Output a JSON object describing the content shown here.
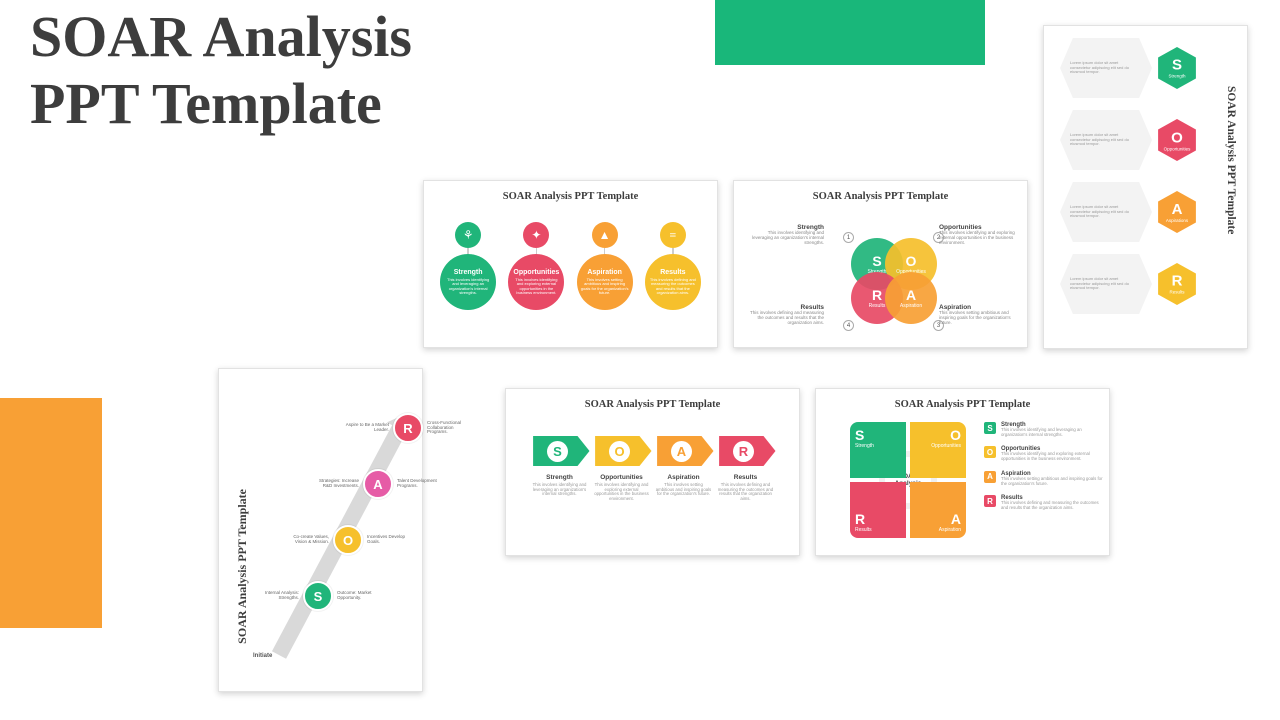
{
  "main_title_l1": "SOAR Analysis",
  "main_title_l2": " PPT Template",
  "block_colors": {
    "green": "#19b77a",
    "orange": "#f8a035"
  },
  "palette": {
    "green": "#20b57a",
    "red": "#e84a66",
    "orange": "#f8a035",
    "yellow": "#f6c02c",
    "pink": "#e65ca6",
    "grey": "#d9d9d9"
  },
  "slide_title": "SOAR Analysis PPT Template",
  "soar_items": [
    {
      "letter": "S",
      "word": "Strength",
      "color": "#20b57a",
      "desc": "This involves identifying and leveraging an organization's internal strengths."
    },
    {
      "letter": "O",
      "word": "Opportunities",
      "color": "#e84a66",
      "desc": "This involves identifying and exploring external opportunities in the business environment."
    },
    {
      "letter": "A",
      "word": "Aspiration",
      "color": "#f8a035",
      "desc": "This involves setting ambitious and inspiring goals for the organization's future."
    },
    {
      "letter": "R",
      "word": "Results",
      "color": "#f6c02c",
      "desc": "This involves defining and measuring the outcomes and results that the organization aims."
    }
  ],
  "s1_icons": [
    "⚘",
    "✦",
    "▲",
    "≡"
  ],
  "s2_side": [
    {
      "h": "Strength",
      "t": "This involves identifying and leveraging an organization's internal strengths."
    },
    {
      "h": "Opportunities",
      "t": "This involves identifying and exploring external opportunities in the business environment."
    },
    {
      "h": "Results",
      "t": "This involves defining and measuring the outcomes and results that the organization aims."
    },
    {
      "h": "Aspiration",
      "t": "This involves setting ambitious and inspiring goals for the organization's future."
    }
  ],
  "s3_items": [
    {
      "letter": "S",
      "word": "Strength",
      "color": "#20b57a"
    },
    {
      "letter": "O",
      "word": "Opportunities",
      "color": "#e84a66"
    },
    {
      "letter": "A",
      "word": "Aspirations",
      "color": "#f8a035"
    },
    {
      "letter": "R",
      "word": "Results",
      "color": "#f6c02c"
    }
  ],
  "s3_desc": "Lorem ipsum dolor sit amet consectetur adipiscing elit sed do eiusmod tempor.",
  "s4_nodes": [
    {
      "letter": "R",
      "color": "#e84a66",
      "left": "Aspire to Be a Market Leader.",
      "right": "Cross-Functional Collaboration Programs."
    },
    {
      "letter": "A",
      "color": "#e65ca6",
      "left": "Strategies: Increase R&D Investments.",
      "right": "Talent Development Programs."
    },
    {
      "letter": "O",
      "color": "#f6c02c",
      "left": "Co-create Values, Vision & Mission.",
      "right": "Incentives Develop Goals."
    },
    {
      "letter": "S",
      "color": "#20b57a",
      "left": "Internal Analysis: Strengths.",
      "right": "Outcome: Market Opportunity."
    }
  ],
  "s4_initiate": "Initiate",
  "s5_items": [
    {
      "letter": "S",
      "word": "Strength",
      "color": "#20b57a"
    },
    {
      "letter": "O",
      "word": "Opportunities",
      "color": "#f6c02c"
    },
    {
      "letter": "A",
      "word": "Aspiration",
      "color": "#f8a035"
    },
    {
      "letter": "R",
      "word": "Results",
      "color": "#e84a66"
    }
  ],
  "s6_quads": [
    {
      "letter": "S",
      "word": "Strength",
      "color": "#20b57a",
      "pos": "tl"
    },
    {
      "letter": "O",
      "word": "Opportunities",
      "color": "#f6c02c",
      "pos": "tr"
    },
    {
      "letter": "R",
      "word": "Results",
      "color": "#e84a66",
      "pos": "bl"
    },
    {
      "letter": "A",
      "word": "Aspiration",
      "color": "#f8a035",
      "pos": "br"
    }
  ],
  "s6_center": "SOAR Analysis",
  "s6_legend": [
    {
      "letter": "S",
      "color": "#20b57a",
      "h": "Strength",
      "d": "This involves identifying and leveraging an organization's internal strengths."
    },
    {
      "letter": "O",
      "color": "#f6c02c",
      "h": "Opportunities",
      "d": "This involves identifying and exploring external opportunities in the business environment."
    },
    {
      "letter": "A",
      "color": "#f8a035",
      "h": "Aspiration",
      "d": "This involves setting ambitious and inspiring goals for the organization's future."
    },
    {
      "letter": "R",
      "color": "#e84a66",
      "h": "Results",
      "d": "This involves defining and measuring the outcomes and results that the organization aims."
    }
  ]
}
